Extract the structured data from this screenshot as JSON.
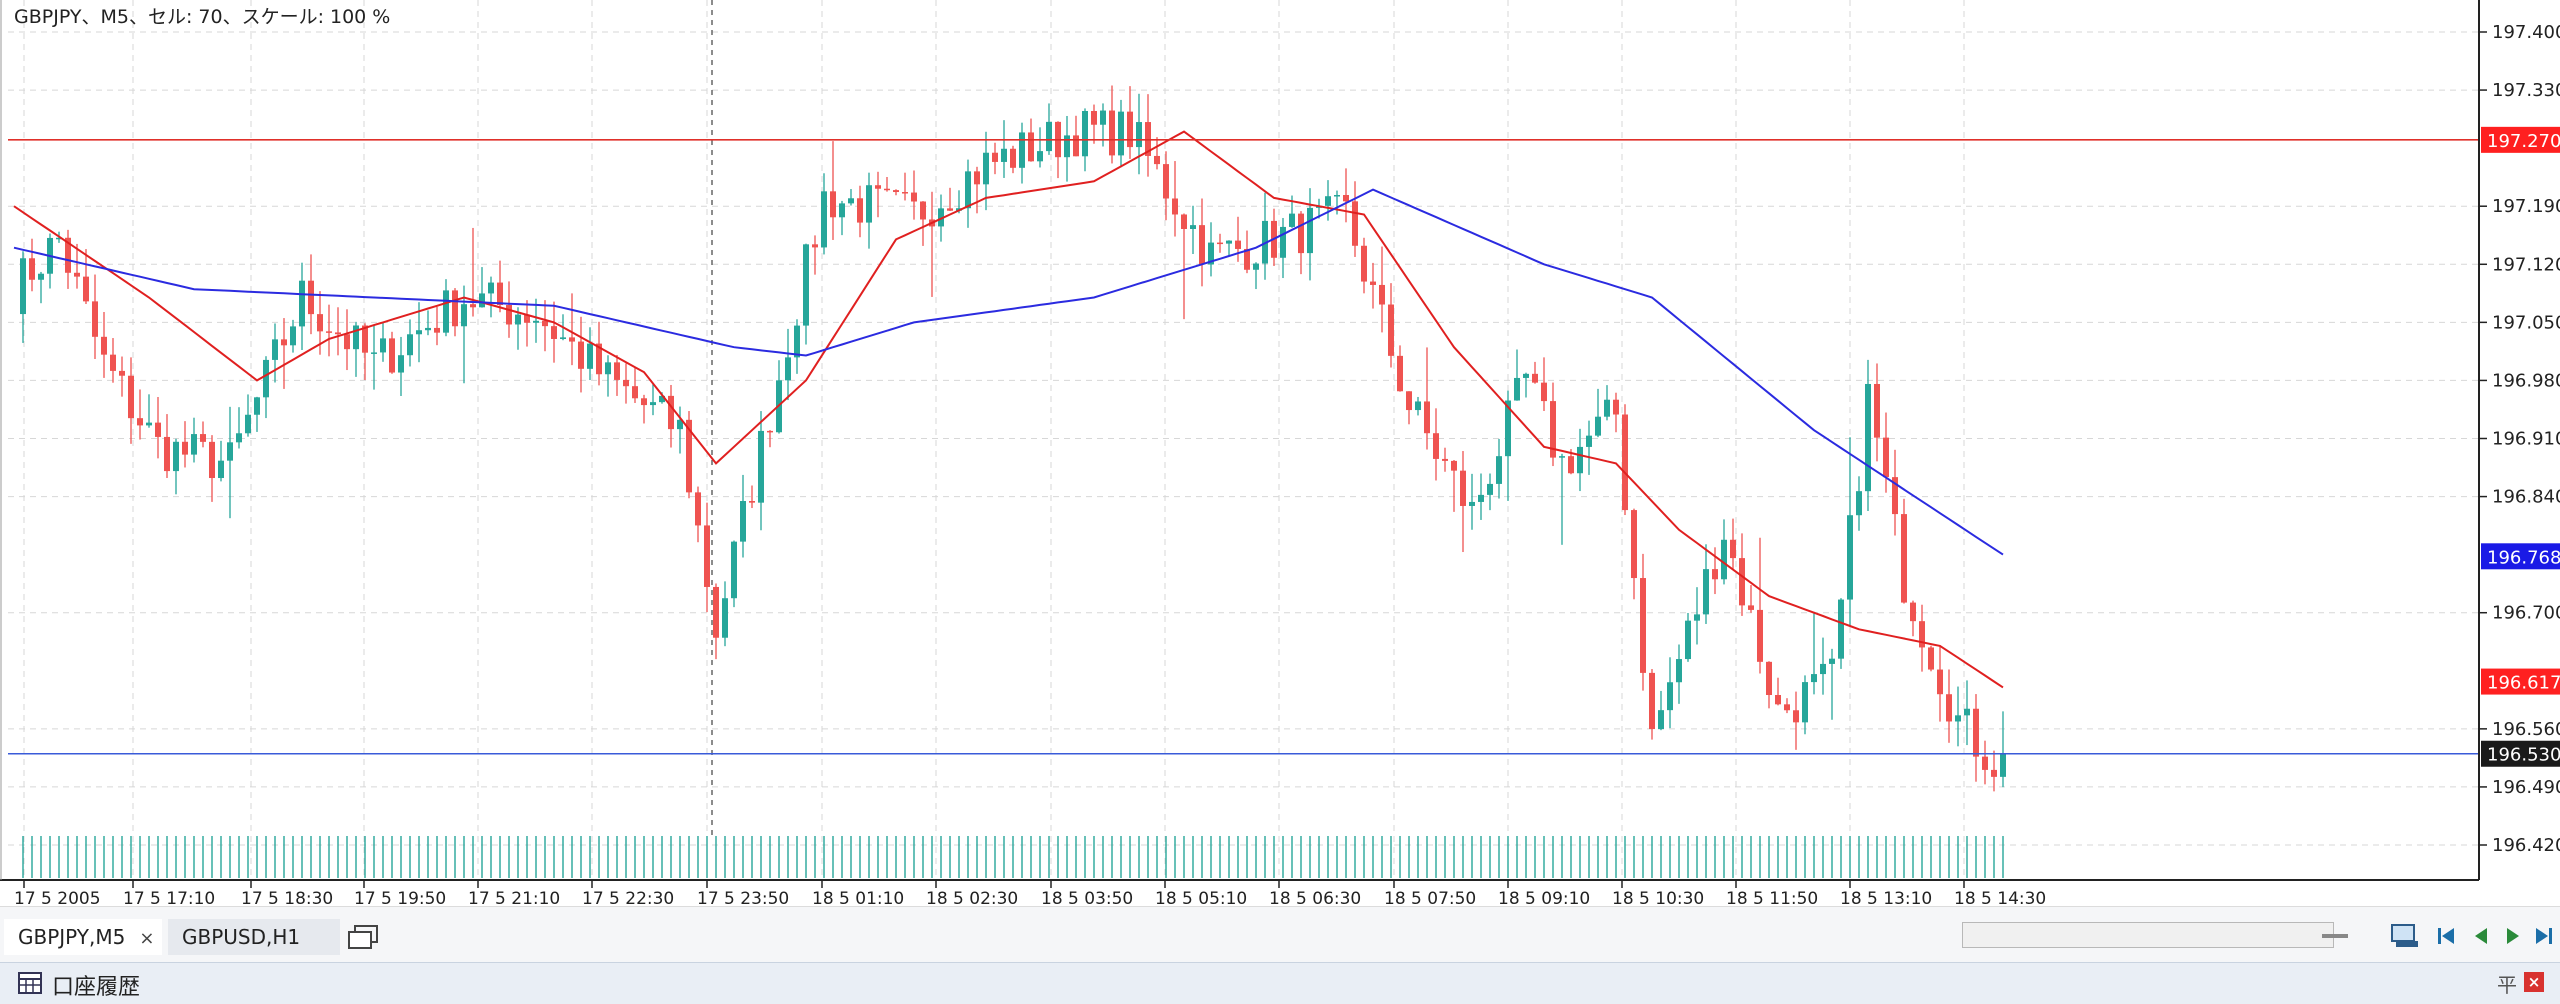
{
  "header": {
    "title": "GBPJPY、M5、セル: 70、スケール: 100 %"
  },
  "chart_data": {
    "type": "candlestick",
    "symbol": "GBPJPY",
    "timeframe": "M5",
    "ylim": [
      196.39,
      197.44
    ],
    "y_ticks": [
      "197.400",
      "197.330",
      "197.190",
      "197.120",
      "197.050",
      "196.980",
      "196.910",
      "196.840",
      "196.700",
      "196.560",
      "196.490",
      "196.420"
    ],
    "x_ticks": [
      "17 5 2005",
      "17 5 17:10",
      "17 5 18:30",
      "17 5 19:50",
      "17 5 21:10",
      "17 5 22:30",
      "17 5 23:50",
      "18 5 01:10",
      "18 5 02:30",
      "18 5 03:50",
      "18 5 05:10",
      "18 5 06:30",
      "18 5 07:50",
      "18 5 09:10",
      "18 5 10:30",
      "18 5 11:50",
      "18 5 13:10",
      "18 5 14:30"
    ],
    "price_labels": [
      {
        "value": "197.270",
        "color": "#ff2020"
      },
      {
        "value": "196.768",
        "color": "#1a1ae6"
      },
      {
        "value": "196.617",
        "color": "#ff2020"
      },
      {
        "value": "196.530",
        "color": "#1a1a1a"
      }
    ],
    "horizontal_lines": [
      {
        "value": 197.27,
        "color": "#e0302a"
      },
      {
        "value": 196.53,
        "color": "#3a5bd9"
      }
    ],
    "anchors": [
      [
        0,
        197.09
      ],
      [
        5,
        197.15
      ],
      [
        10,
        197.0
      ],
      [
        16,
        196.9
      ],
      [
        24,
        196.88
      ],
      [
        32,
        197.08
      ],
      [
        40,
        197.0
      ],
      [
        50,
        197.08
      ],
      [
        58,
        197.06
      ],
      [
        66,
        196.98
      ],
      [
        74,
        196.92
      ],
      [
        78,
        196.68
      ],
      [
        83,
        196.9
      ],
      [
        90,
        197.2
      ],
      [
        100,
        197.18
      ],
      [
        108,
        197.24
      ],
      [
        118,
        197.28
      ],
      [
        124,
        197.28
      ],
      [
        133,
        197.13
      ],
      [
        140,
        197.15
      ],
      [
        148,
        197.18
      ],
      [
        155,
        196.95
      ],
      [
        162,
        196.82
      ],
      [
        168,
        196.98
      ],
      [
        172,
        196.88
      ],
      [
        178,
        196.94
      ],
      [
        182,
        196.55
      ],
      [
        190,
        196.8
      ],
      [
        196,
        196.58
      ],
      [
        202,
        196.62
      ],
      [
        206,
        196.96
      ],
      [
        210,
        196.74
      ],
      [
        216,
        196.57
      ],
      [
        220,
        196.52
      ]
    ],
    "ma_red": [
      [
        0,
        197.19
      ],
      [
        15,
        197.08
      ],
      [
        27,
        196.98
      ],
      [
        35,
        197.03
      ],
      [
        50,
        197.08
      ],
      [
        60,
        197.05
      ],
      [
        70,
        196.99
      ],
      [
        78,
        196.88
      ],
      [
        88,
        196.98
      ],
      [
        98,
        197.15
      ],
      [
        108,
        197.2
      ],
      [
        120,
        197.22
      ],
      [
        130,
        197.28
      ],
      [
        140,
        197.2
      ],
      [
        150,
        197.18
      ],
      [
        160,
        197.02
      ],
      [
        170,
        196.9
      ],
      [
        178,
        196.88
      ],
      [
        185,
        196.8
      ],
      [
        195,
        196.72
      ],
      [
        205,
        196.68
      ],
      [
        214,
        196.66
      ],
      [
        221,
        196.61
      ]
    ],
    "ma_blue": [
      [
        0,
        197.14
      ],
      [
        20,
        197.09
      ],
      [
        40,
        197.08
      ],
      [
        60,
        197.07
      ],
      [
        80,
        197.02
      ],
      [
        88,
        197.01
      ],
      [
        100,
        197.05
      ],
      [
        120,
        197.08
      ],
      [
        138,
        197.14
      ],
      [
        151,
        197.21
      ],
      [
        170,
        197.12
      ],
      [
        182,
        197.08
      ],
      [
        200,
        196.92
      ],
      [
        221,
        196.77
      ]
    ]
  },
  "tabs": [
    {
      "label": "GBPJPY,M5",
      "close": "×"
    },
    {
      "label": "GBPUSD,H1"
    }
  ],
  "status_bar": {
    "label": "口座履歴",
    "pin": "平",
    "close": "×"
  },
  "icons": [
    "window-list-icon",
    "chart-zoom-icon",
    "first-page-icon",
    "prev-icon",
    "next-icon",
    "last-page-icon",
    "table-icon",
    "pin-icon",
    "close-icon"
  ]
}
